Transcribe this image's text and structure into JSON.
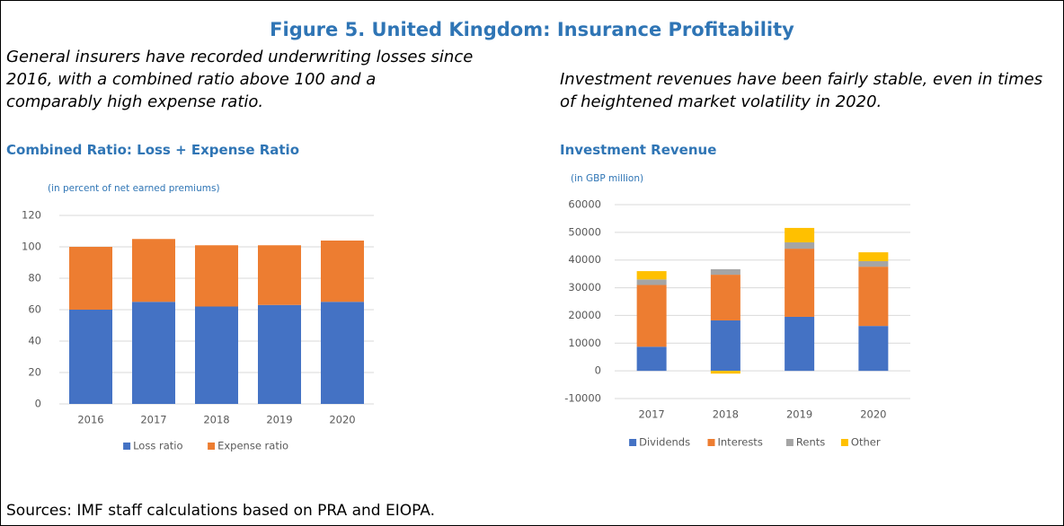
{
  "title": "Figure 5. United Kingdom: Insurance Profitability",
  "left_note": [
    "General insurers have recorded underwriting losses since",
    "2016, with a combined ratio above 100 and a",
    "comparably high expense ratio."
  ],
  "right_note": [
    "Investment revenues  have been fairly stable, even in times",
    "of heightened market volatility in 2020."
  ],
  "source": "Sources: IMF staff calculations  based on PRA and EIOPA.",
  "chart_data": [
    {
      "type": "stacked_bar",
      "title": "Combined Ratio: Loss + Expense Ratio",
      "subtitle": "(in percent of net earned premiums)",
      "categories": [
        "2016",
        "2017",
        "2018",
        "2019",
        "2020"
      ],
      "series": [
        {
          "name": "Loss ratio",
          "color": "#4472c4",
          "values": [
            60,
            65,
            62,
            63,
            65
          ]
        },
        {
          "name": "Expense ratio",
          "color": "#ed7d31",
          "values": [
            40,
            40,
            39,
            38,
            39
          ]
        }
      ],
      "ylim": [
        0,
        120
      ],
      "yticks": [
        0,
        20,
        40,
        60,
        80,
        100,
        120
      ],
      "grid": true,
      "legend": "bottom"
    },
    {
      "type": "stacked_bar",
      "title": "Investment  Revenue",
      "subtitle": "(in GBP million)",
      "categories": [
        "2017",
        "2018",
        "2019",
        "2020"
      ],
      "series": [
        {
          "name": "Dividends",
          "color": "#4472c4",
          "values": [
            8700,
            18200,
            19500,
            16200
          ]
        },
        {
          "name": "Interests",
          "color": "#ed7d31",
          "values": [
            22300,
            16500,
            24600,
            21400
          ]
        },
        {
          "name": "Rents",
          "color": "#a5a5a5",
          "values": [
            2000,
            2000,
            2300,
            2000
          ]
        },
        {
          "name": "Other",
          "color": "#ffc000",
          "values": [
            3000,
            -1000,
            5200,
            3200
          ]
        }
      ],
      "ylim": [
        -10000,
        60000
      ],
      "yticks": [
        -10000,
        0,
        10000,
        20000,
        30000,
        40000,
        50000,
        60000
      ],
      "grid": true,
      "legend": "bottom"
    }
  ]
}
